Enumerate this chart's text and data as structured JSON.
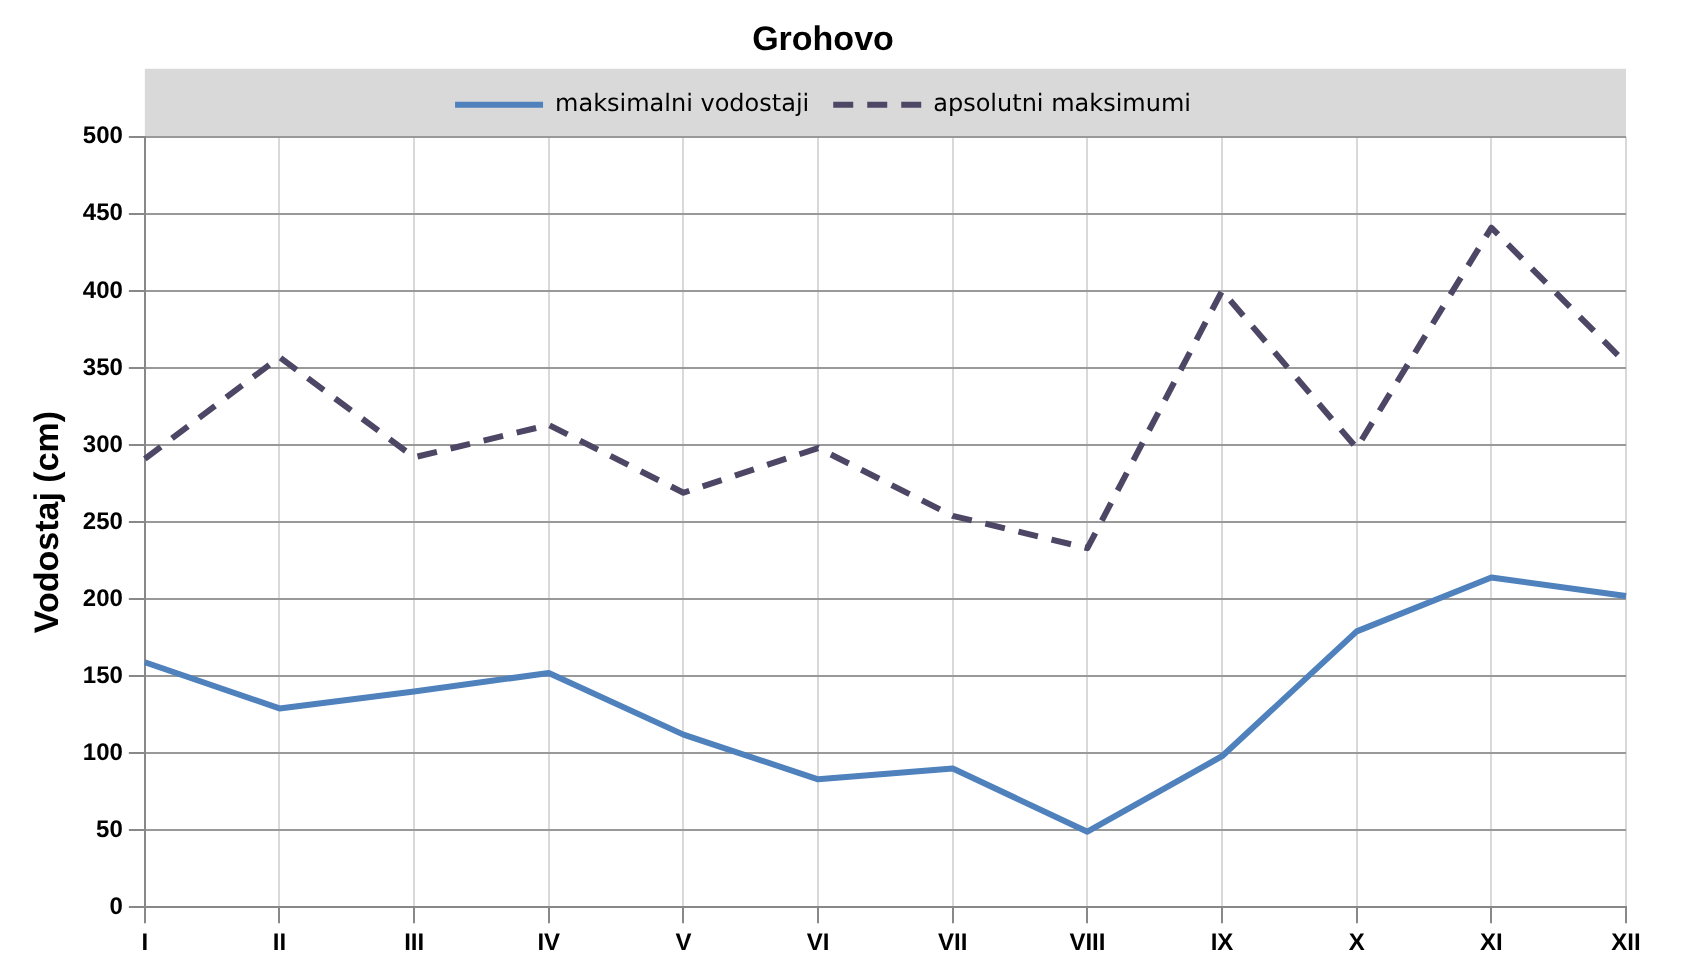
{
  "chart_data": {
    "type": "line",
    "title": "Grohovo",
    "ylabel": "Vodostaj (cm)",
    "categories": [
      "I",
      "II",
      "III",
      "IV",
      "V",
      "VI",
      "VII",
      "VIII",
      "IX",
      "X",
      "XI",
      "XII"
    ],
    "series": [
      {
        "name": "maksimalni vodostaji",
        "color": "#4f81bd",
        "line_style": "solid",
        "values": [
          159,
          129,
          140,
          152,
          112,
          83,
          90,
          49,
          98,
          179,
          214,
          202
        ]
      },
      {
        "name": "apsolutni maksimumi",
        "color": "#4d4665",
        "line_style": "dashed",
        "values": [
          291,
          357,
          292,
          313,
          269,
          298,
          254,
          233,
          400,
          298,
          441,
          353
        ]
      }
    ],
    "ylim": [
      0,
      500
    ],
    "yticks": [
      0,
      50,
      100,
      150,
      200,
      250,
      300,
      350,
      400,
      450,
      500
    ],
    "grid": true,
    "legend": "top",
    "marker": "none"
  }
}
